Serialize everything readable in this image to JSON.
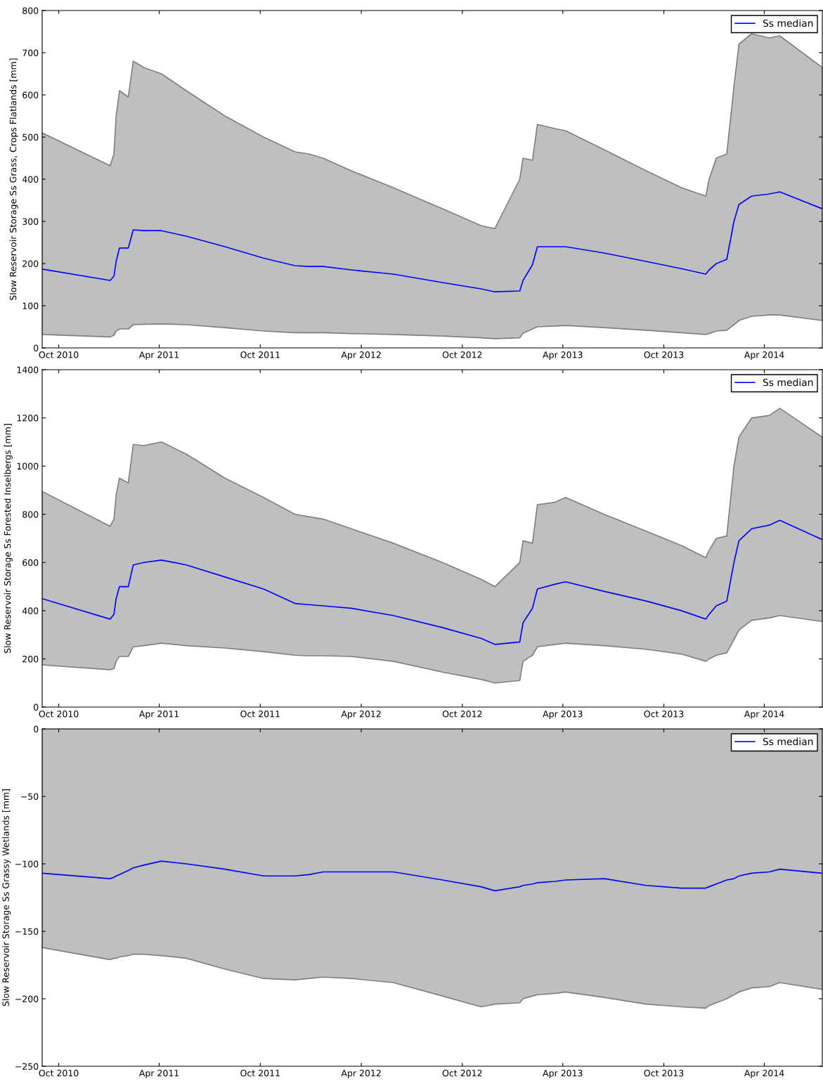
{
  "chart_data": [
    {
      "type": "line",
      "ylabel": "Slow Reservoir Storage Ss Grass, Crops Flatlands [mm]",
      "legend": "top right",
      "grid": false,
      "xlim": [
        "2010-09-01",
        "2014-07-15"
      ],
      "xticks": [
        {
          "value": "2010-10-01",
          "label": "Oct 2010"
        },
        {
          "value": "2011-04-01",
          "label": "Apr 2011"
        },
        {
          "value": "2011-10-01",
          "label": "Oct 2011"
        },
        {
          "value": "2012-04-01",
          "label": "Apr 2012"
        },
        {
          "value": "2012-10-01",
          "label": "Oct 2012"
        },
        {
          "value": "2013-04-01",
          "label": "Apr 2013"
        },
        {
          "value": "2013-10-01",
          "label": "Oct 2013"
        },
        {
          "value": "2014-04-01",
          "label": "Apr 2014"
        }
      ],
      "ylim": [
        0,
        800
      ],
      "yticks": [
        0,
        100,
        200,
        300,
        400,
        500,
        600,
        700,
        800
      ],
      "x": [
        "2010-09-01",
        "2011-01-02",
        "2011-01-09",
        "2011-01-13",
        "2011-01-19",
        "2011-02-04",
        "2011-02-13",
        "2011-03-04",
        "2011-04-05",
        "2011-05-20",
        "2011-07-29",
        "2011-10-07",
        "2011-12-03",
        "2011-12-28",
        "2012-01-23",
        "2012-03-14",
        "2012-05-29",
        "2012-08-26",
        "2012-11-04",
        "2012-11-29",
        "2013-01-13",
        "2013-01-19",
        "2013-02-05",
        "2013-02-14",
        "2013-03-18",
        "2013-04-06",
        "2013-06-15",
        "2013-08-30",
        "2013-11-02",
        "2013-12-16",
        "2013-12-22",
        "2014-01-04",
        "2014-01-23",
        "2014-02-05",
        "2014-02-14",
        "2014-03-09",
        "2014-04-10",
        "2014-04-29",
        "2014-07-15"
      ],
      "series": [
        {
          "name": "Ss median",
          "color": "#0000ff",
          "values": [
            187,
            160,
            170,
            205,
            237,
            237,
            280,
            278,
            278,
            265,
            240,
            213,
            195,
            193,
            193,
            185,
            175,
            155,
            140,
            133,
            135,
            160,
            197,
            240,
            240,
            240,
            225,
            205,
            188,
            175,
            185,
            200,
            210,
            300,
            340,
            360,
            365,
            370,
            330
          ],
          "lower": [
            32,
            26,
            30,
            40,
            45,
            45,
            55,
            56,
            57,
            55,
            48,
            40,
            36,
            36,
            36,
            34,
            32,
            28,
            24,
            22,
            24,
            35,
            45,
            50,
            52,
            53,
            48,
            42,
            36,
            32,
            34,
            40,
            42,
            55,
            65,
            75,
            78,
            78,
            65
          ],
          "upper": [
            510,
            432,
            460,
            550,
            610,
            595,
            680,
            665,
            650,
            610,
            550,
            500,
            465,
            460,
            450,
            420,
            380,
            330,
            290,
            283,
            400,
            450,
            445,
            530,
            520,
            515,
            470,
            420,
            380,
            360,
            400,
            450,
            460,
            620,
            720,
            745,
            735,
            740,
            665
          ]
        }
      ]
    },
    {
      "type": "line",
      "ylabel": "Slow Reservoir Storage Ss Forested Inselbergs [mm]",
      "legend": "top right",
      "grid": false,
      "xlim": [
        "2010-09-01",
        "2014-07-15"
      ],
      "xticks": [
        {
          "value": "2010-10-01",
          "label": "Oct 2010"
        },
        {
          "value": "2011-04-01",
          "label": "Apr 2011"
        },
        {
          "value": "2011-10-01",
          "label": "Oct 2011"
        },
        {
          "value": "2012-04-01",
          "label": "Apr 2012"
        },
        {
          "value": "2012-10-01",
          "label": "Oct 2012"
        },
        {
          "value": "2013-04-01",
          "label": "Apr 2013"
        },
        {
          "value": "2013-10-01",
          "label": "Oct 2013"
        },
        {
          "value": "2014-04-01",
          "label": "Apr 2014"
        }
      ],
      "ylim": [
        0,
        1400
      ],
      "yticks": [
        0,
        200,
        400,
        600,
        800,
        1000,
        1200,
        1400
      ],
      "x": [
        "2010-09-01",
        "2011-01-02",
        "2011-01-09",
        "2011-01-13",
        "2011-01-19",
        "2011-02-04",
        "2011-02-13",
        "2011-03-04",
        "2011-04-05",
        "2011-05-20",
        "2011-07-29",
        "2011-10-07",
        "2011-12-03",
        "2011-12-28",
        "2012-01-23",
        "2012-03-14",
        "2012-05-29",
        "2012-08-26",
        "2012-11-04",
        "2012-11-29",
        "2013-01-13",
        "2013-01-19",
        "2013-02-05",
        "2013-02-14",
        "2013-03-18",
        "2013-04-06",
        "2013-06-15",
        "2013-08-30",
        "2013-11-02",
        "2013-12-16",
        "2013-12-22",
        "2014-01-04",
        "2014-01-23",
        "2014-02-05",
        "2014-02-14",
        "2014-03-09",
        "2014-04-10",
        "2014-04-29",
        "2014-07-15"
      ],
      "series": [
        {
          "name": "Ss median",
          "color": "#0000ff",
          "values": [
            450,
            365,
            385,
            450,
            500,
            500,
            590,
            600,
            610,
            590,
            540,
            490,
            430,
            425,
            420,
            410,
            380,
            330,
            285,
            260,
            270,
            350,
            410,
            490,
            510,
            520,
            480,
            440,
            400,
            365,
            385,
            420,
            440,
            600,
            690,
            740,
            755,
            775,
            695
          ],
          "lower": [
            175,
            155,
            160,
            190,
            210,
            210,
            250,
            255,
            265,
            255,
            245,
            230,
            215,
            213,
            213,
            210,
            190,
            145,
            115,
            100,
            110,
            190,
            215,
            250,
            260,
            265,
            255,
            240,
            220,
            190,
            200,
            215,
            225,
            280,
            320,
            360,
            370,
            380,
            355
          ],
          "upper": [
            895,
            750,
            780,
            880,
            950,
            930,
            1090,
            1085,
            1100,
            1050,
            950,
            870,
            800,
            790,
            780,
            740,
            680,
            600,
            530,
            500,
            600,
            690,
            680,
            840,
            850,
            870,
            800,
            730,
            670,
            620,
            650,
            700,
            710,
            1000,
            1120,
            1200,
            1210,
            1240,
            1120
          ]
        }
      ]
    },
    {
      "type": "line",
      "ylabel": "Slow Reservoir Storage Ss Grassy Wetlands [mm]",
      "legend": "top right",
      "grid": false,
      "xlim": [
        "2010-09-01",
        "2014-07-15"
      ],
      "xticks": [
        {
          "value": "2010-10-01",
          "label": "Oct 2010"
        },
        {
          "value": "2011-04-01",
          "label": "Apr 2011"
        },
        {
          "value": "2011-10-01",
          "label": "Oct 2011"
        },
        {
          "value": "2012-04-01",
          "label": "Apr 2012"
        },
        {
          "value": "2012-10-01",
          "label": "Oct 2012"
        },
        {
          "value": "2013-04-01",
          "label": "Apr 2013"
        },
        {
          "value": "2013-10-01",
          "label": "Oct 2013"
        },
        {
          "value": "2014-04-01",
          "label": "Apr 2014"
        }
      ],
      "ylim": [
        -250,
        0
      ],
      "yticks": [
        {
          "value": -250,
          "label": "−250"
        },
        {
          "value": -200,
          "label": "−200"
        },
        {
          "value": -150,
          "label": "−150"
        },
        {
          "value": -100,
          "label": "−100"
        },
        {
          "value": -50,
          "label": "−50"
        },
        0
      ],
      "x": [
        "2010-09-01",
        "2011-01-02",
        "2011-01-09",
        "2011-01-13",
        "2011-01-19",
        "2011-02-04",
        "2011-02-13",
        "2011-03-04",
        "2011-04-05",
        "2011-05-20",
        "2011-07-29",
        "2011-10-07",
        "2011-12-03",
        "2011-12-28",
        "2012-01-23",
        "2012-03-14",
        "2012-05-29",
        "2012-08-26",
        "2012-11-04",
        "2012-11-29",
        "2013-01-13",
        "2013-01-19",
        "2013-02-05",
        "2013-02-14",
        "2013-03-18",
        "2013-04-06",
        "2013-06-15",
        "2013-08-30",
        "2013-11-02",
        "2013-12-16",
        "2013-12-22",
        "2014-01-04",
        "2014-01-23",
        "2014-02-05",
        "2014-02-14",
        "2014-03-09",
        "2014-04-10",
        "2014-04-29",
        "2014-07-15"
      ],
      "series": [
        {
          "name": "Ss median",
          "color": "#0000ff",
          "values": [
            -107,
            -111,
            -110,
            -109,
            -108,
            -105,
            -103,
            -101,
            -98,
            -100,
            -104,
            -109,
            -109,
            -108,
            -106,
            -106,
            -106,
            -112,
            -117,
            -120,
            -117,
            -116,
            -115,
            -114,
            -113,
            -112,
            -111,
            -116,
            -118,
            -118,
            -117,
            -115,
            -112,
            -111,
            -109,
            -107,
            -106,
            -104,
            -107
          ],
          "lower": [
            -162,
            -171,
            -170,
            -170,
            -169,
            -168,
            -167,
            -167,
            -168,
            -170,
            -178,
            -185,
            -186,
            -185,
            -184,
            -185,
            -188,
            -198,
            -206,
            -204,
            -203,
            -200,
            -198,
            -197,
            -196,
            -195,
            -199,
            -204,
            -206,
            -207,
            -205,
            -203,
            -200,
            -197,
            -195,
            -192,
            -191,
            -188,
            -193
          ],
          "upper": [
            0,
            0,
            0,
            0,
            0,
            0,
            0,
            0,
            0,
            0,
            0,
            0,
            0,
            0,
            0,
            0,
            0,
            0,
            0,
            0,
            0,
            0,
            0,
            0,
            0,
            0,
            0,
            0,
            0,
            0,
            0,
            0,
            0,
            0,
            0,
            0,
            0,
            0,
            0
          ]
        }
      ]
    }
  ]
}
